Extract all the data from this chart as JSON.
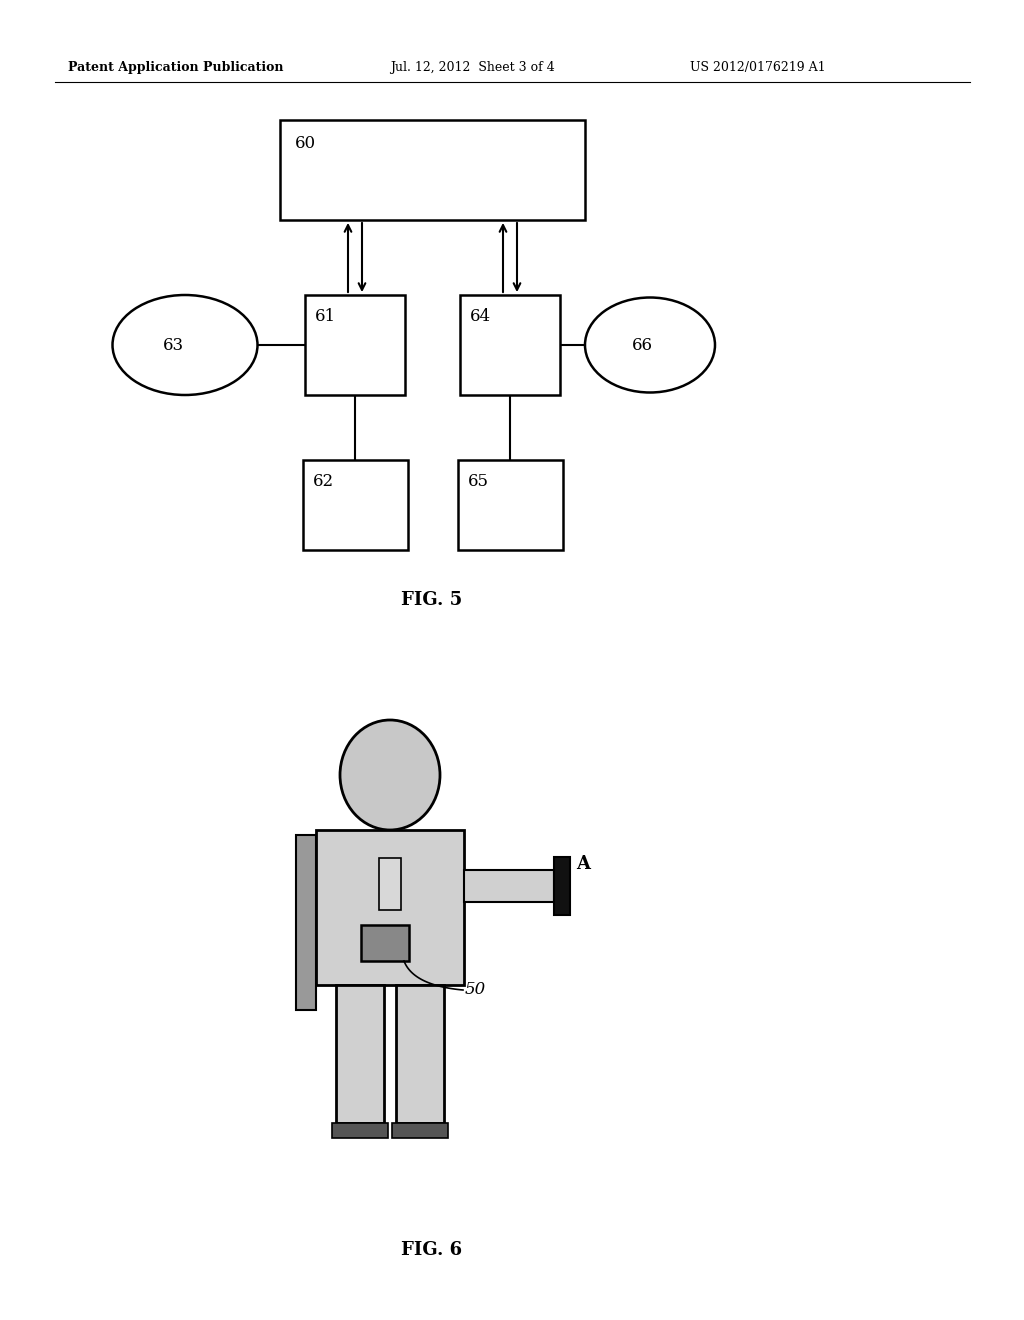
{
  "bg_color": "#ffffff",
  "header_left": "Patent Application Publication",
  "header_center": "Jul. 12, 2012  Sheet 3 of 4",
  "header_right": "US 2012/0176219 A1",
  "fig5_label": "FIG. 5",
  "fig6_label": "FIG. 6",
  "node60_label": "60",
  "node61_label": "61",
  "node62_label": "62",
  "node63_label": "63",
  "node64_label": "64",
  "node65_label": "65",
  "node66_label": "66",
  "label50": "50",
  "labelA": "A",
  "head_color": "#c8c8c8",
  "body_color": "#d0d0d0",
  "stripe_color": "#999999",
  "device_color": "#888888",
  "card_color": "#111111",
  "foot_color": "#555555"
}
